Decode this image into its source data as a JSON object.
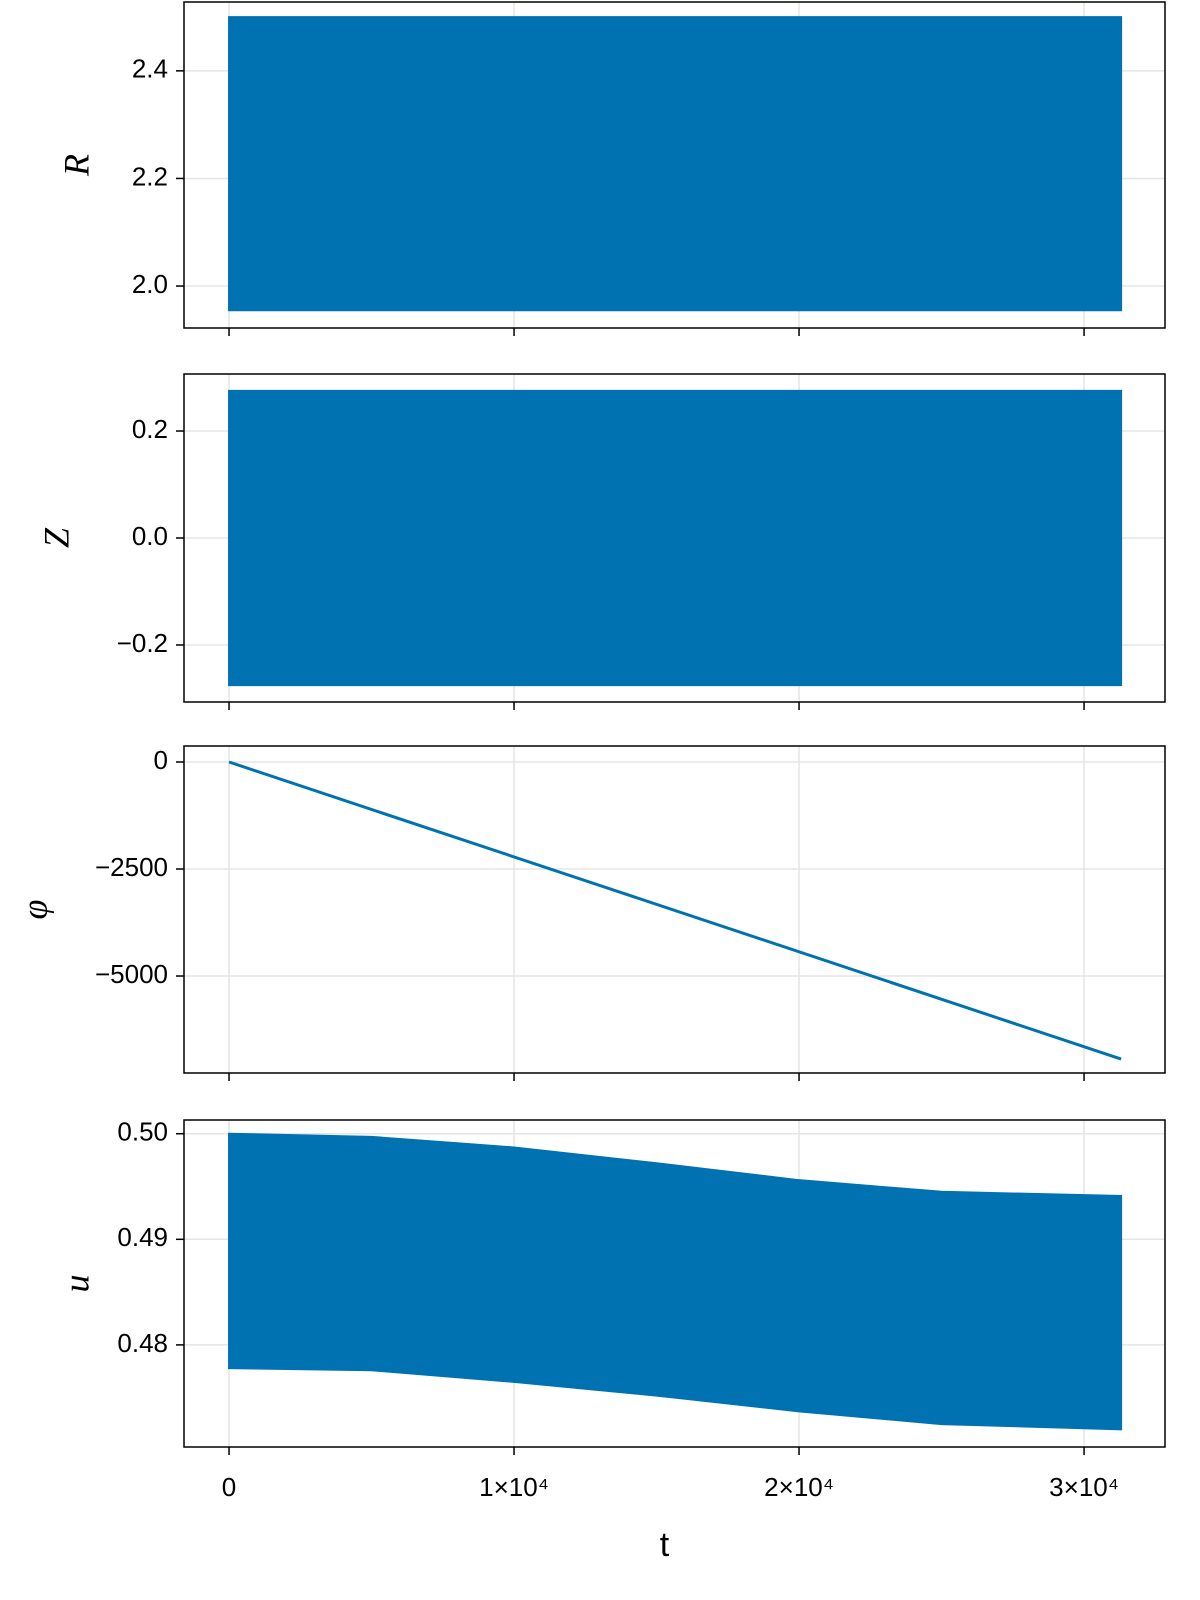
{
  "chart_data": [
    {
      "type": "band",
      "ylabel": "R",
      "color": "#0072b2",
      "grid": true,
      "x": [
        0,
        31300
      ],
      "upper": [
        2.5,
        2.5
      ],
      "lower": [
        1.955,
        1.955
      ],
      "xlim": [
        -1580,
        32840
      ],
      "xticks": [
        0,
        10000,
        20000,
        30000
      ],
      "ylim": [
        1.922,
        2.528
      ],
      "yticks": [
        {
          "value": 2.0,
          "label": "2.0"
        },
        2.2,
        2.4
      ]
    },
    {
      "type": "band",
      "ylabel": "Z",
      "color": "#0072b2",
      "grid": true,
      "x": [
        0,
        31300
      ],
      "upper": [
        0.275,
        0.275
      ],
      "lower": [
        -0.275,
        -0.275
      ],
      "xlim": [
        -1580,
        32840
      ],
      "xticks": [
        0,
        10000,
        20000,
        30000
      ],
      "ylim": [
        -0.3066,
        0.3066
      ],
      "yticks": [
        {
          "value": -0.2,
          "label": "−0.2"
        },
        {
          "value": 0,
          "label": "0.0"
        },
        0.2
      ]
    },
    {
      "type": "line",
      "ylabel": "φ",
      "color": "#0072b2",
      "grid": true,
      "x": [
        0,
        31300
      ],
      "values": [
        0,
        -6940
      ],
      "xlim": [
        -1580,
        32840
      ],
      "xticks": [
        0,
        10000,
        20000,
        30000
      ],
      "ylim": [
        -7266,
        374
      ],
      "yticks": [
        {
          "value": -5000,
          "label": "−5000"
        },
        {
          "value": -2500,
          "label": "−2500"
        },
        0
      ]
    },
    {
      "type": "band",
      "ylabel": "u",
      "xlabel": "t",
      "color": "#0072b2",
      "grid": true,
      "x": [
        0,
        5000,
        10000,
        15000,
        20000,
        25000,
        31300
      ],
      "upper": [
        0.5,
        0.4997,
        0.4987,
        0.4972,
        0.4956,
        0.4945,
        0.4941
      ],
      "lower": [
        0.4778,
        0.4776,
        0.4765,
        0.4752,
        0.4737,
        0.4725,
        0.472
      ],
      "xlim": [
        -1580,
        32840
      ],
      "xticks": [
        0,
        {
          "value": 10000,
          "label": "1×10⁴"
        },
        {
          "value": 20000,
          "label": "2×10⁴"
        },
        {
          "value": 30000,
          "label": "3×10⁴"
        }
      ],
      "ylim": [
        0.47033,
        0.5013
      ],
      "yticks": [
        0.48,
        0.49,
        {
          "value": 0.5,
          "label": "0.50"
        }
      ]
    }
  ]
}
